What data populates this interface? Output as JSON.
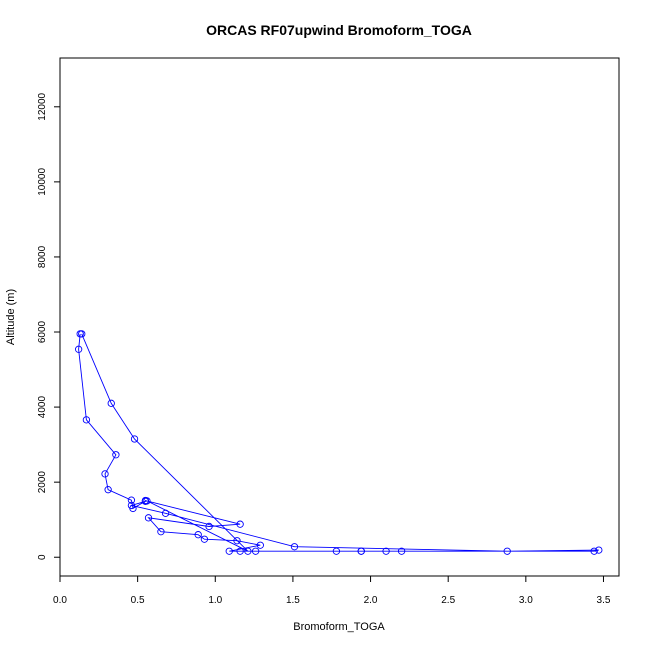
{
  "chart_data": {
    "type": "line",
    "title": "ORCAS RF07upwind Bromoform_TOGA",
    "xlabel": "Bromoform_TOGA",
    "ylabel": "Altitude (m)",
    "xlim": [
      0,
      3.6
    ],
    "ylim": [
      -500,
      13300
    ],
    "xticks": [
      0,
      0.5,
      1,
      1.5,
      2,
      2.5,
      3,
      3.5
    ],
    "xtick_labels": [
      "0.0",
      "0.5",
      "1.0",
      "1.5",
      "2.0",
      "2.5",
      "3.0",
      "3.5"
    ],
    "yticks": [
      0,
      2000,
      4000,
      6000,
      8000,
      10000,
      12000
    ],
    "ytick_labels": [
      "0",
      "2000",
      "4000",
      "6000",
      "8000",
      "10000",
      "12000"
    ],
    "grid": false,
    "marker": "open-circle",
    "color": "#0000ff",
    "series": [
      {
        "x": [
          0.13,
          0.12,
          0.17,
          0.36,
          0.29,
          0.31,
          0.46,
          0.47,
          0.55,
          0.55,
          1.16,
          0.96,
          0.57,
          0.65,
          0.89,
          0.93,
          1.14,
          1.29,
          1.09,
          1.16,
          1.26,
          1.94,
          1.94,
          1.78,
          2.2,
          2.1,
          3.44,
          3.47,
          2.88,
          1.51,
          0.68,
          0.46,
          0.56,
          1.21,
          0.48,
          0.33,
          0.14
        ],
        "y": [
          5950,
          5540,
          3660,
          2730,
          2220,
          1800,
          1520,
          1300,
          1490,
          1510,
          880,
          820,
          1050,
          680,
          600,
          480,
          440,
          320,
          160,
          160,
          160,
          160,
          160,
          160,
          160,
          160,
          160,
          190,
          160,
          280,
          1170,
          1380,
          1500,
          160,
          3150,
          4100,
          5950
        ]
      }
    ]
  }
}
